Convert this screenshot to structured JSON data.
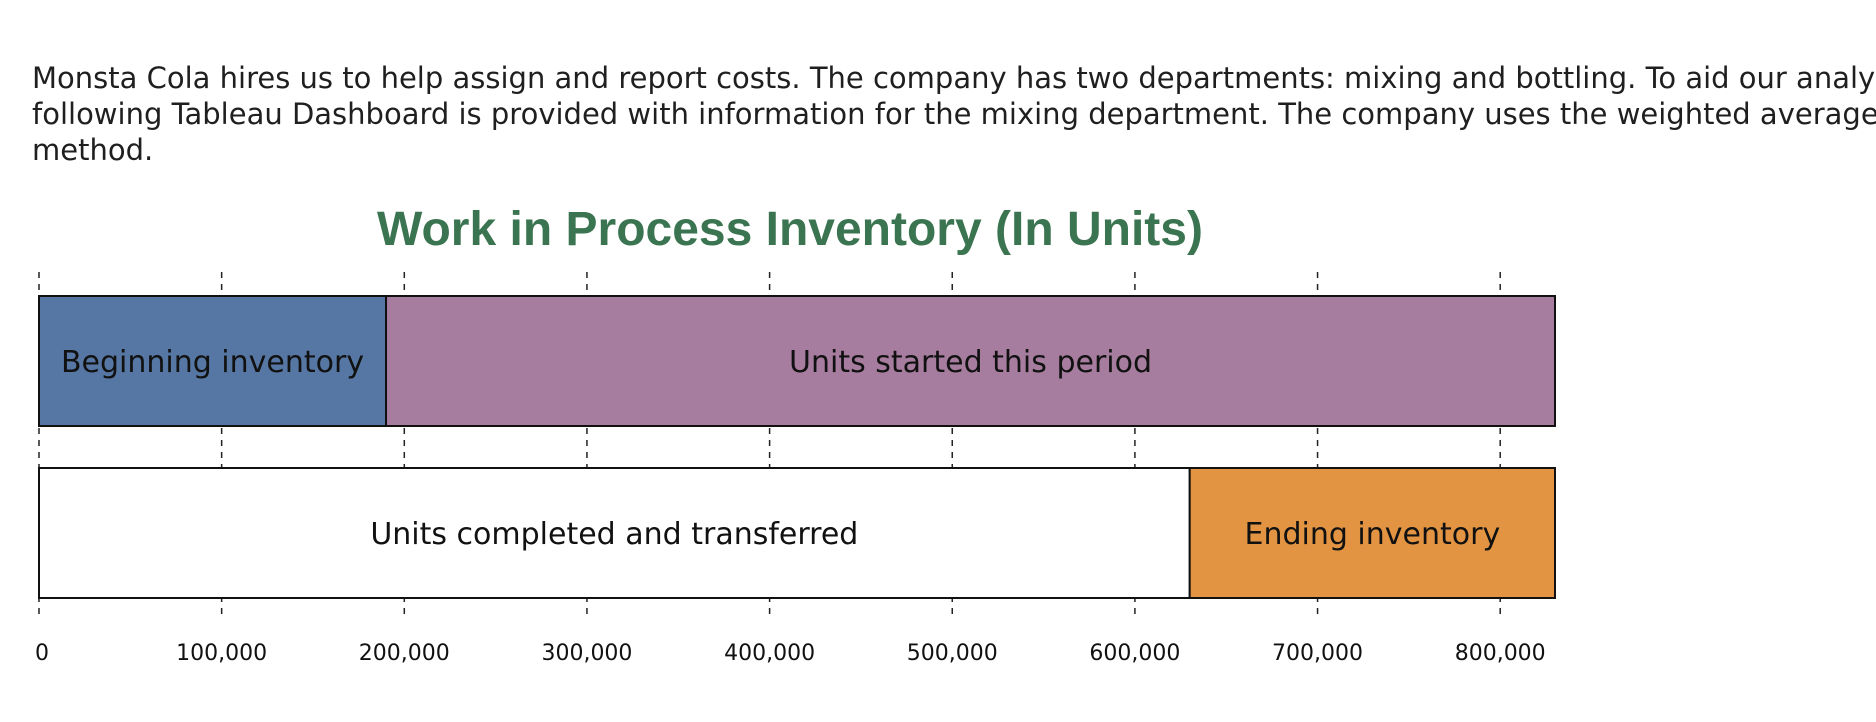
{
  "intro": {
    "line1": "Monsta Cola hires us to help assign and report costs. The company has two departments: mixing and bottling. To aid our analysis, the",
    "line2": "following Tableau Dashboard is provided with information for the mixing department. The company uses the weighted average",
    "line3": "method."
  },
  "chart_data": {
    "type": "bar",
    "orientation": "horizontal-stacked",
    "title": "Work in Process Inventory (In Units)",
    "title_color": "#3a7450",
    "xlim": [
      0,
      830000
    ],
    "ticks": [
      0,
      100000,
      200000,
      300000,
      400000,
      500000,
      600000,
      700000,
      800000
    ],
    "tick_labels": [
      "0",
      "100,000",
      "200,000",
      "300,000",
      "400,000",
      "500,000",
      "600,000",
      "700,000",
      "800,000"
    ],
    "grid": "dashed vertical",
    "bars": [
      {
        "segments": [
          {
            "label": "Beginning inventory",
            "start": 0,
            "end": 190000,
            "color": "#5677a3"
          },
          {
            "label": "Units started this period",
            "start": 190000,
            "end": 830000,
            "color": "#a77d9f"
          }
        ]
      },
      {
        "segments": [
          {
            "label": "Units completed and transferred",
            "start": 0,
            "end": 630000,
            "color": "#ffffff"
          },
          {
            "label": "Ending inventory",
            "start": 630000,
            "end": 830000,
            "color": "#e29442"
          }
        ]
      }
    ]
  }
}
